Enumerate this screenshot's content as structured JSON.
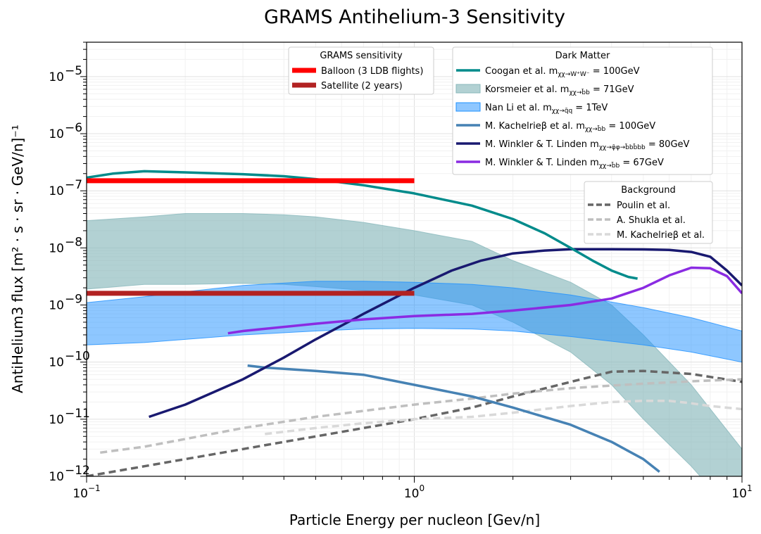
{
  "chart_data": {
    "type": "line",
    "title": "GRAMS Antihelium-3 Sensitivity",
    "xlabel": "Particle Energy per nucleon [Gev/n]",
    "ylabel": "AntiHelium3 flux [m² · s · sr · GeV/n]⁻¹",
    "x_scale": "log",
    "y_scale": "log",
    "xlim": [
      0.1,
      10
    ],
    "ylim": [
      1e-12,
      4e-05
    ],
    "grid": true,
    "x_ticks": [
      {
        "value": 0.1,
        "base": "10",
        "exp": "−1"
      },
      {
        "value": 1,
        "base": "10",
        "exp": "0"
      },
      {
        "value": 10,
        "base": "10",
        "exp": "1"
      }
    ],
    "y_ticks": [
      {
        "value": 1e-12,
        "base": "10",
        "exp": "−12"
      },
      {
        "value": 1e-11,
        "base": "10",
        "exp": "−11"
      },
      {
        "value": 1e-10,
        "base": "10",
        "exp": "−10"
      },
      {
        "value": 1e-09,
        "base": "10",
        "exp": "−9"
      },
      {
        "value": 1e-08,
        "base": "10",
        "exp": "−8"
      },
      {
        "value": 1e-07,
        "base": "10",
        "exp": "−7"
      },
      {
        "value": 1e-06,
        "base": "10",
        "exp": "−6"
      },
      {
        "value": 1e-05,
        "base": "10",
        "exp": "−5"
      }
    ],
    "legends": [
      {
        "title": "GRAMS sensitivity",
        "placement": "top-center",
        "entries": [
          "grams_balloon",
          "grams_satellite"
        ]
      },
      {
        "title": "Dark Matter",
        "placement": "top-right",
        "entries": [
          "coogan",
          "korsmeier",
          "nanli",
          "kachelriess_dm",
          "winkler_80",
          "winkler_67"
        ]
      },
      {
        "title": "Background",
        "placement": "upper-right",
        "entries": [
          "bg_poulin",
          "bg_shukla",
          "bg_kachelriess"
        ]
      }
    ],
    "series": [
      {
        "id": "grams_balloon",
        "name": "Balloon (3 LDB flights)",
        "kind": "line",
        "color": "#ff0000",
        "width": 7,
        "dash": "",
        "x": [
          0.1,
          1.0
        ],
        "y": [
          1.5e-07,
          1.5e-07
        ]
      },
      {
        "id": "grams_satellite",
        "name": "Satellite (2 years)",
        "kind": "line",
        "color": "#b22222",
        "width": 7,
        "dash": "",
        "x": [
          0.1,
          1.0
        ],
        "y": [
          1.6e-09,
          1.6e-09
        ]
      },
      {
        "id": "coogan",
        "name": "Coogan et al. m",
        "sub": "χχ→W⁺W⁻",
        "value": " = 100GeV",
        "kind": "line",
        "color": "#008b8b",
        "width": 3.5,
        "dash": "",
        "x": [
          0.1,
          0.12,
          0.15,
          0.2,
          0.3,
          0.4,
          0.5,
          0.7,
          1.0,
          1.5,
          2.0,
          2.5,
          3.0,
          3.5,
          4.0,
          4.5,
          4.8
        ],
        "y": [
          1.7e-07,
          2e-07,
          2.2e-07,
          2.1e-07,
          1.95e-07,
          1.8e-07,
          1.6e-07,
          1.25e-07,
          9e-08,
          5.5e-08,
          3.2e-08,
          1.8e-08,
          1e-08,
          6e-09,
          4e-09,
          3.1e-09,
          2.9e-09
        ]
      },
      {
        "id": "korsmeier",
        "name": "Korsmeier et al. m",
        "sub": "χχ→b̄b",
        "value": " = 71GeV",
        "kind": "band",
        "color": "#88b8bb",
        "opacity": 0.65,
        "x": [
          0.1,
          0.15,
          0.2,
          0.3,
          0.4,
          0.5,
          0.7,
          1.0,
          1.5,
          2.0,
          3.0,
          4.0,
          5.0,
          7.0,
          10.0
        ],
        "y_high": [
          3e-08,
          3.5e-08,
          4e-08,
          4e-08,
          3.8e-08,
          3.5e-08,
          2.8e-08,
          2e-08,
          1.3e-08,
          6e-09,
          2.5e-09,
          1e-09,
          3e-10,
          4e-11,
          3e-12
        ],
        "y_low": [
          1.9e-09,
          2.3e-09,
          2.3e-09,
          2.4e-09,
          2.3e-09,
          2.1e-09,
          1.8e-09,
          1.5e-09,
          1e-09,
          5e-10,
          1.5e-10,
          4e-11,
          1e-11,
          1.5e-12,
          1.5e-13
        ]
      },
      {
        "id": "nanli",
        "name": "Nan Li et al. m",
        "sub": "χχ→q̄q",
        "value": " = 1TeV",
        "kind": "band",
        "color": "#1e90ff",
        "opacity": 0.5,
        "x": [
          0.1,
          0.15,
          0.2,
          0.3,
          0.5,
          0.7,
          1.0,
          1.5,
          2.0,
          3.0,
          5.0,
          7.0,
          10.0
        ],
        "y_high": [
          1.1e-09,
          1.4e-09,
          1.7e-09,
          2.2e-09,
          2.6e-09,
          2.6e-09,
          2.5e-09,
          2.3e-09,
          2e-09,
          1.5e-09,
          9e-10,
          6e-10,
          3.5e-10
        ],
        "y_low": [
          2e-10,
          2.2e-10,
          2.5e-10,
          3e-10,
          3.5e-10,
          3.8e-10,
          3.9e-10,
          3.8e-10,
          3.5e-10,
          2.8e-10,
          2e-10,
          1.5e-10,
          1e-10
        ]
      },
      {
        "id": "kachelriess_dm",
        "name": "M. Kachelrieβ et al. m",
        "sub": "χχ→b̄b",
        "value": " = 100GeV",
        "kind": "line",
        "color": "#4682b4",
        "width": 3.5,
        "dash": "",
        "x": [
          0.31,
          0.35,
          0.5,
          0.7,
          1.0,
          1.5,
          2.0,
          3.0,
          4.0,
          5.0,
          5.6
        ],
        "y": [
          8.7e-11,
          8e-11,
          7e-11,
          6e-11,
          4e-11,
          2.5e-11,
          1.6e-11,
          8e-12,
          4e-12,
          2e-12,
          1.2e-12
        ]
      },
      {
        "id": "winkler_80",
        "name": "M. Winkler & T. Linden m",
        "sub": "χχ→φ̄φ→b̄bb̄bb",
        "value": " = 80GeV",
        "kind": "line",
        "color": "#191970",
        "width": 3.5,
        "dash": "",
        "x": [
          0.155,
          0.2,
          0.3,
          0.4,
          0.5,
          0.7,
          1.0,
          1.3,
          1.6,
          2.0,
          2.5,
          3.0,
          4.0,
          5.0,
          6.0,
          7.0,
          8.0,
          9.0,
          10.0
        ],
        "y": [
          1.1e-11,
          1.8e-11,
          5e-11,
          1.2e-10,
          2.5e-10,
          7e-10,
          2e-09,
          4e-09,
          6e-09,
          8e-09,
          9e-09,
          9.5e-09,
          9.5e-09,
          9.4e-09,
          9.2e-09,
          8.5e-09,
          7e-09,
          4e-09,
          2.2e-09
        ]
      },
      {
        "id": "winkler_67",
        "name": "M. Winkler & T. Linden m",
        "sub": "χχ→b̄b",
        "value": " = 67GeV",
        "kind": "line",
        "color": "#8a2be2",
        "width": 3.5,
        "dash": "",
        "x": [
          0.27,
          0.3,
          0.5,
          0.7,
          1.0,
          1.5,
          2.0,
          3.0,
          4.0,
          5.0,
          6.0,
          7.0,
          8.0,
          9.0,
          10.0
        ],
        "y": [
          3.2e-10,
          3.5e-10,
          4.7e-10,
          5.6e-10,
          6.4e-10,
          7e-10,
          8e-10,
          1e-09,
          1.3e-09,
          2e-09,
          3.3e-09,
          4.5e-09,
          4.4e-09,
          3.2e-09,
          1.6e-09
        ]
      },
      {
        "id": "bg_poulin",
        "name": "Poulin et al.",
        "kind": "line",
        "color": "#666666",
        "width": 3.5,
        "dash": "10,6",
        "x": [
          0.1,
          0.15,
          0.2,
          0.3,
          0.4,
          0.5,
          0.7,
          1.0,
          1.5,
          2.0,
          3.0,
          4.0,
          5.0,
          7.0,
          10.0
        ],
        "y": [
          1e-12,
          1.5e-12,
          2e-12,
          3e-12,
          4e-12,
          5e-12,
          7e-12,
          1e-11,
          1.6e-11,
          2.5e-11,
          4.5e-11,
          6.8e-11,
          7e-11,
          6.2e-11,
          4.5e-11
        ]
      },
      {
        "id": "bg_shukla",
        "name": "A. Shukla et al.",
        "kind": "line",
        "color": "#bfbfbf",
        "width": 3.5,
        "dash": "10,6",
        "x": [
          0.11,
          0.15,
          0.2,
          0.3,
          0.5,
          0.7,
          1.0,
          1.5,
          2.0,
          3.0,
          5.0,
          7.0,
          10.0
        ],
        "y": [
          2.6e-12,
          3.3e-12,
          4.5e-12,
          7e-12,
          1.1e-11,
          1.4e-11,
          1.8e-11,
          2.3e-11,
          2.8e-11,
          3.5e-11,
          4.2e-11,
          4.6e-11,
          5e-11
        ]
      },
      {
        "id": "bg_kachelriess",
        "name": "M. Kachelrieβ et al.",
        "kind": "line",
        "color": "#d9d9d9",
        "width": 3.5,
        "dash": "10,6",
        "x": [
          0.35,
          0.5,
          0.7,
          1.0,
          1.5,
          2.0,
          3.0,
          4.0,
          5.0,
          6.0,
          7.0,
          8.0,
          10.0
        ],
        "y": [
          5.5e-12,
          7e-12,
          8.5e-12,
          1e-11,
          1.1e-11,
          1.3e-11,
          1.7e-11,
          2e-11,
          2.1e-11,
          2.1e-11,
          1.9e-11,
          1.7e-11,
          1.5e-11
        ]
      }
    ]
  }
}
